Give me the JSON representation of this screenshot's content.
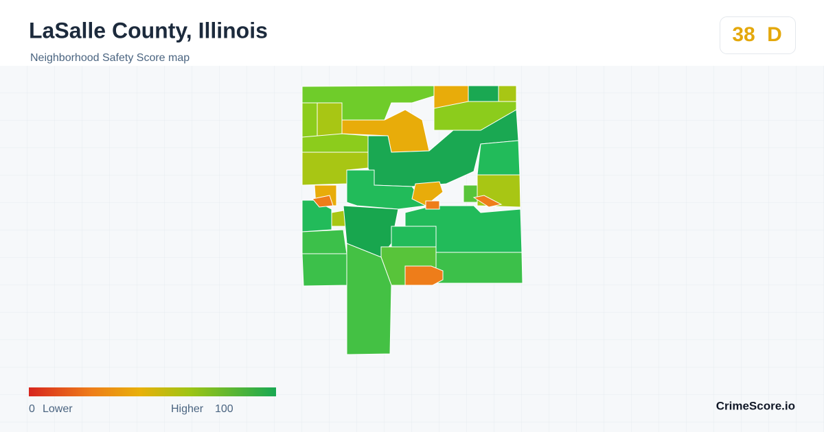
{
  "header": {
    "title": "LaSalle County, Illinois",
    "subtitle": "Neighborhood Safety Score map"
  },
  "score": {
    "value": 38,
    "grade": "D"
  },
  "legend": {
    "min": 0,
    "min_label": "Lower",
    "max_label": "Higher",
    "max": 100
  },
  "brand": "CrimeScore.io"
}
